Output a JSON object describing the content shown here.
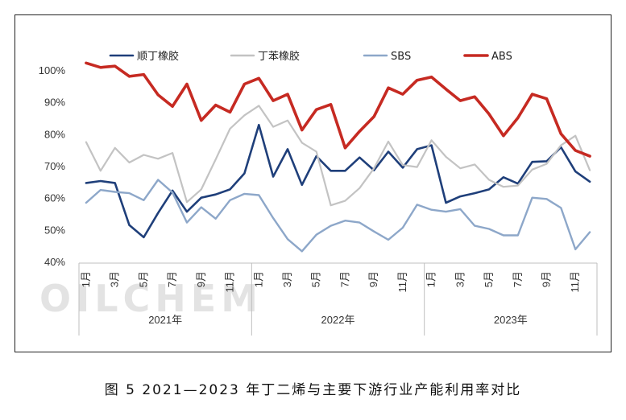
{
  "caption": "图 5  2021—2023 年丁二烯与主要下游行业产能利用率对比",
  "watermark": "OILCHEM",
  "chart_data": {
    "type": "line",
    "ylim": [
      40,
      100
    ],
    "y_ticks": [
      "40%",
      "50%",
      "60%",
      "70%",
      "80%",
      "90%",
      "100%"
    ],
    "x_tick_labels": [
      "1月",
      "3月",
      "5月",
      "7月",
      "9月",
      "11月",
      "1月",
      "3月",
      "5月",
      "7月",
      "9月",
      "11月",
      "1月",
      "3月",
      "5月",
      "7月",
      "9月",
      "11月"
    ],
    "years": [
      "2021年",
      "2022年",
      "2023年"
    ],
    "legend_position": "top",
    "series": [
      {
        "name": "顺丁橡胶",
        "color": "#1f3f7a",
        "width": 2.6,
        "values": [
          64.6,
          65.2,
          64.6,
          51.4,
          47.6,
          55.2,
          62.2,
          55.6,
          60,
          61,
          62.6,
          67.6,
          82.8,
          66.6,
          75.2,
          64,
          73,
          68.4,
          68.4,
          72.6,
          68.6,
          74.4,
          69.4,
          75.2,
          76.4,
          58.4,
          60.4,
          61.4,
          62.6,
          66.4,
          64.4,
          71.2,
          71.4,
          75.8,
          68.2,
          65
        ]
      },
      {
        "name": "丁苯橡胶",
        "color": "#c3c3c3",
        "width": 2.2,
        "values": [
          77.4,
          68.4,
          75.6,
          71,
          73.4,
          72.2,
          74,
          58.6,
          62.6,
          72,
          81.6,
          85.8,
          88.8,
          82.2,
          84.2,
          77.2,
          74.4,
          57.6,
          59,
          63,
          69.2,
          77.6,
          70.2,
          69.6,
          78,
          72.8,
          69.2,
          70.4,
          65.6,
          63.4,
          63.8,
          68.8,
          70.6,
          76.4,
          79.4,
          68.6
        ]
      },
      {
        "name": "SBS",
        "color": "#8da7c9",
        "width": 2.4,
        "values": [
          58.4,
          62.4,
          61.8,
          61.4,
          59.2,
          65.6,
          61.6,
          52.2,
          57,
          53.4,
          59.2,
          61.2,
          60.8,
          53.6,
          47,
          43.2,
          48.4,
          51.2,
          52.8,
          52.2,
          49.4,
          46.8,
          50.6,
          57.8,
          56.2,
          55.6,
          56.4,
          51.2,
          50.2,
          48.2,
          48.2,
          60,
          59.6,
          56.8,
          43.8,
          49.2
        ]
      },
      {
        "name": "ABS",
        "color": "#c62a22",
        "width": 3.6,
        "values": [
          102.2,
          100.8,
          101.2,
          98,
          98.6,
          92.2,
          88.6,
          95.6,
          84.2,
          89,
          86.8,
          95.6,
          97.4,
          90.4,
          92.4,
          81.2,
          87.6,
          89.2,
          75.6,
          80.8,
          85.4,
          94.4,
          92.4,
          96.8,
          97.8,
          94,
          90.4,
          91.6,
          86.2,
          79.4,
          85,
          92.4,
          91,
          80,
          74.8,
          73
        ]
      }
    ]
  }
}
